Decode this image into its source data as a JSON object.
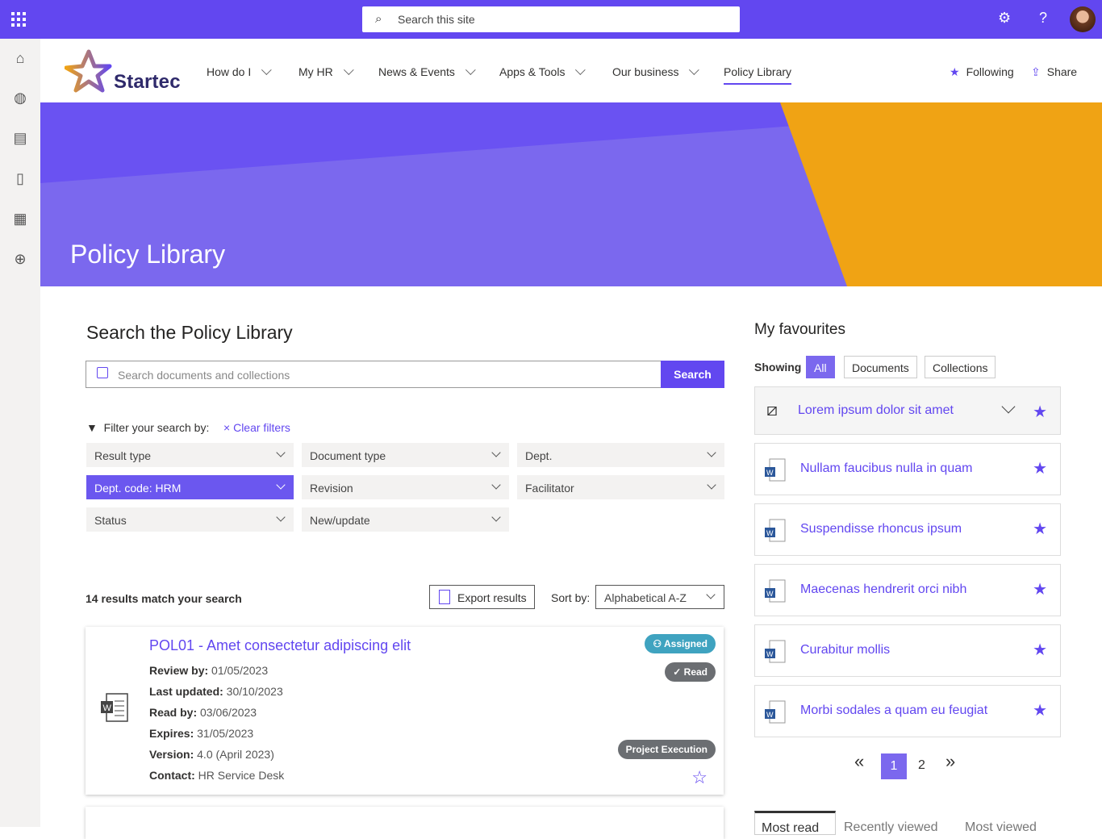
{
  "topbar": {
    "search_placeholder": "Search this site",
    "icons": [
      "app-launcher-icon",
      "settings-icon",
      "help-icon",
      "avatar"
    ]
  },
  "brand": {
    "name": "Startec"
  },
  "nav": [
    {
      "label": "How do I"
    },
    {
      "label": "My HR"
    },
    {
      "label": "News & Events"
    },
    {
      "label": "Apps & Tools"
    },
    {
      "label": "Our business"
    },
    {
      "label": "Policy Library",
      "active": true
    }
  ],
  "header_actions": {
    "following": "Following",
    "share": "Share"
  },
  "hero": {
    "title": "Policy Library",
    "colors": {
      "purple": "#7b68ee",
      "orange": "#f0a314"
    }
  },
  "search": {
    "heading": "Search the Policy Library",
    "placeholder": "Search documents and collections",
    "button": "Search"
  },
  "filters": {
    "label": "Filter your search by:",
    "clear": "Clear filters",
    "dropdowns": [
      "Result type",
      "Document type",
      "Dept.",
      "Dept. code: HRM",
      "Revision",
      "Facilitator",
      "Status",
      "New/update"
    ]
  },
  "results": {
    "count_text": "14 results match your search",
    "export": "Export results",
    "sort_label": "Sort by:",
    "sort_value": "Alphabetical A-Z",
    "items": [
      {
        "title": "POL01 - Amet consectetur adipiscing elit",
        "fields": [
          {
            "k": "Review by:",
            "v": "01/05/2023"
          },
          {
            "k": "Last updated:",
            "v": "30/10/2023"
          },
          {
            "k": "Read by:",
            "v": "03/06/2023"
          },
          {
            "k": "Expires:",
            "v": "31/05/2023"
          },
          {
            "k": "Version:",
            "v": "4.0 (April 2023)"
          },
          {
            "k": "Contact:",
            "v": "HR Service Desk"
          }
        ],
        "badges": {
          "assigned": "Assigned",
          "read": "Read",
          "tag": "Project Execution"
        }
      }
    ]
  },
  "favourites": {
    "heading": "My favourites",
    "showing": "Showing",
    "filters": [
      "All",
      "Documents",
      "Collections"
    ],
    "items": [
      "Lorem ipsum dolor sit amet",
      "Nullam faucibus nulla in quam",
      "Suspendisse rhoncus ipsum",
      "Maecenas hendrerit orci nibh",
      "Curabitur mollis",
      "Morbi sodales a quam eu feugiat"
    ],
    "pager": {
      "current": "1",
      "next": "2"
    }
  },
  "bottom_tabs": [
    "Most read",
    "Recently viewed",
    "Most viewed"
  ],
  "accent": "#6247f0"
}
